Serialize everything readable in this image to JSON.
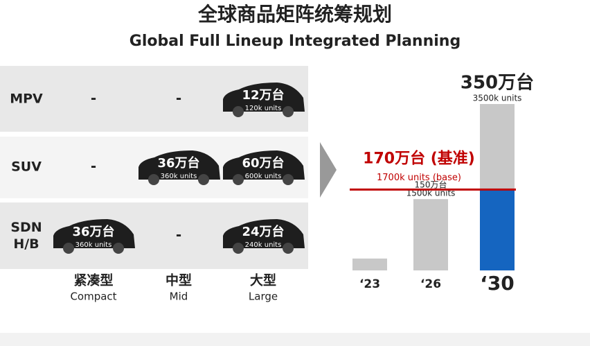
{
  "header": {
    "title": "全球商品矩阵统筹规划",
    "subtitle": "Global Full Lineup Integrated Planning"
  },
  "matrix": {
    "columns": [
      {
        "zh": "紧凑型",
        "en": "Compact"
      },
      {
        "zh": "中型",
        "en": "Mid"
      },
      {
        "zh": "大型",
        "en": "Large"
      }
    ],
    "rows": [
      {
        "label": "MPV",
        "cells": [
          {
            "text": "-"
          },
          {
            "text": "-"
          },
          {
            "value": "12万台",
            "units": "120k units"
          }
        ]
      },
      {
        "label": "SUV",
        "cells": [
          {
            "text": "-"
          },
          {
            "value": "36万台",
            "units": "360k units"
          },
          {
            "value": "60万台",
            "units": "600k units"
          }
        ]
      },
      {
        "label": "SDN\nH/B",
        "cells": [
          {
            "value": "36万台",
            "units": "360k units"
          },
          {
            "text": "-"
          },
          {
            "value": "24万台",
            "units": "240k units"
          }
        ]
      }
    ]
  },
  "chart_data": {
    "type": "bar",
    "categories": [
      "‘23",
      "‘26",
      "‘30"
    ],
    "values": [
      25,
      150,
      350
    ],
    "value_labels": [
      null,
      "150万台",
      "350万台"
    ],
    "unit_labels": [
      null,
      "1500k units",
      "3500k units"
    ],
    "color": "#c8c8c8",
    "base": {
      "value": 170,
      "label": "170万台 (基准)",
      "sublabel": "1700k units (base)",
      "color": "#c00000",
      "fill": "#1565c0"
    }
  }
}
